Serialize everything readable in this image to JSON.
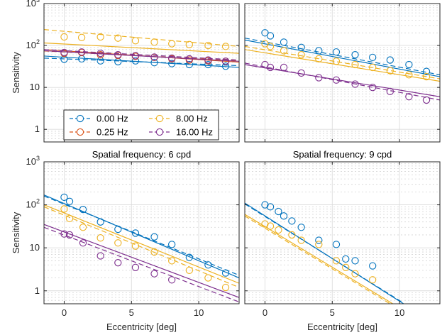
{
  "chart_data": [
    {
      "type": "scatter",
      "title": "",
      "xlabel": "",
      "ylabel": "Sensitivity",
      "xlim": [
        -1.5,
        13
      ],
      "ylim": [
        0.5,
        1000
      ],
      "y_scale": "log",
      "x_ticks": [
        0,
        5,
        10
      ],
      "y_ticks": [
        1,
        10,
        100,
        1000
      ],
      "y_tick_labels": [
        "1",
        "10",
        "10²",
        "10³"
      ],
      "grid": true,
      "legend": {
        "placement": "bottom-left",
        "entries": [
          "0.00 Hz",
          "0.25 Hz",
          "8.00 Hz",
          "16.00 Hz"
        ]
      },
      "series": [
        {
          "name": "0.00 Hz",
          "color": "#0072BD",
          "x": [
            0,
            1.3,
            2.7,
            4.0,
            5.3,
            6.7,
            8.0,
            9.3,
            10.7,
            12.0
          ],
          "y": [
            47,
            48,
            43,
            41,
            43,
            39,
            37,
            35,
            35,
            32
          ],
          "fit": [
            [
              -1.5,
              56
            ],
            [
              13,
              30
            ]
          ],
          "fit_dashed": [
            [
              -1.5,
              50
            ],
            [
              13,
              33
            ]
          ]
        },
        {
          "name": "0.25 Hz",
          "color": "#D95319",
          "x": [
            0,
            1.3,
            2.7,
            4.0,
            5.3,
            6.7,
            8.0,
            9.3,
            10.7,
            12.0
          ],
          "y": [
            65,
            68,
            60,
            58,
            55,
            52,
            48,
            45,
            43,
            42
          ],
          "fit": [
            [
              -1.5,
              80
            ],
            [
              13,
              40
            ]
          ],
          "fit_dashed": [
            [
              -1.5,
              74
            ],
            [
              13,
              43
            ]
          ]
        },
        {
          "name": "8.00 Hz",
          "color": "#EDB120",
          "x": [
            0,
            1.3,
            2.7,
            4.0,
            5.3,
            6.7,
            8.0,
            9.3,
            10.7,
            12.0
          ],
          "y": [
            160,
            155,
            160,
            150,
            130,
            120,
            110,
            105,
            100,
            95
          ],
          "fit": [
            [
              -1.5,
              115
            ],
            [
              13,
              65
            ]
          ],
          "fit_dashed": [
            [
              -1.5,
              240
            ],
            [
              13,
              95
            ]
          ]
        },
        {
          "name": "16.00 Hz",
          "color": "#7E2F8E",
          "x": [
            0,
            1.3,
            2.7,
            4.0,
            5.3,
            6.7,
            8.0,
            9.3,
            10.7,
            12.0
          ],
          "y": [
            68,
            70,
            65,
            60,
            57,
            53,
            50,
            48,
            45,
            42
          ],
          "fit": [
            [
              -1.5,
              75
            ],
            [
              13,
              42
            ]
          ],
          "fit_dashed": [
            [
              -1.5,
              80
            ],
            [
              13,
              45
            ]
          ]
        }
      ]
    },
    {
      "type": "scatter",
      "title": "",
      "xlabel": "",
      "ylabel": "",
      "xlim": [
        -1.5,
        13
      ],
      "ylim": [
        0.5,
        1000
      ],
      "y_scale": "log",
      "x_ticks": [
        0,
        5,
        10
      ],
      "y_ticks": [
        1,
        10,
        100,
        1000
      ],
      "grid": true,
      "series": [
        {
          "name": "0.00 Hz",
          "color": "#0072BD",
          "x": [
            0,
            0.4,
            1.4,
            2.7,
            4.0,
            5.3,
            6.7,
            8.0,
            9.3,
            10.7,
            12.0
          ],
          "y": [
            200,
            170,
            120,
            90,
            75,
            70,
            60,
            52,
            45,
            35,
            24
          ],
          "fit": [
            [
              -1.5,
              135
            ],
            [
              13,
              18
            ]
          ],
          "fit_dashed": [
            [
              -1.5,
              150
            ],
            [
              13,
              20
            ]
          ]
        },
        {
          "name": "8.00 Hz",
          "color": "#EDB120",
          "x": [
            0,
            0.4,
            1.4,
            2.7,
            4.0,
            5.3,
            6.7,
            8.0,
            9.3,
            10.7,
            12.0
          ],
          "y": [
            110,
            95,
            75,
            60,
            48,
            42,
            35,
            30,
            25,
            20,
            18
          ],
          "fit": [
            [
              -1.5,
              80
            ],
            [
              13,
              14
            ]
          ],
          "fit_dashed": [
            [
              -1.5,
              95
            ],
            [
              13,
              16
            ]
          ]
        },
        {
          "name": "16.00 Hz",
          "color": "#7E2F8E",
          "x": [
            0,
            0.4,
            1.4,
            2.7,
            4.0,
            5.3,
            6.7,
            8.0,
            9.3,
            10.7,
            12.0
          ],
          "y": [
            35,
            30,
            30,
            22,
            17,
            15,
            12,
            10,
            8,
            6,
            5
          ],
          "fit": [
            [
              -1.5,
              35
            ],
            [
              13,
              6
            ]
          ],
          "fit_dashed": [
            [
              -1.5,
              38
            ],
            [
              13,
              5
            ]
          ]
        }
      ]
    },
    {
      "type": "scatter",
      "title": "Spatial frequency: 6 cpd",
      "xlabel": "Eccentricity [deg]",
      "ylabel": "Sensitivity",
      "xlim": [
        -1.5,
        13
      ],
      "ylim": [
        0.5,
        1000
      ],
      "y_scale": "log",
      "x_ticks": [
        0,
        5,
        10
      ],
      "y_ticks": [
        1,
        10,
        100,
        1000
      ],
      "y_tick_labels": [
        "1",
        "10",
        "10²",
        "10³"
      ],
      "grid": true,
      "series": [
        {
          "name": "0.00 Hz",
          "color": "#0072BD",
          "x": [
            0,
            0.4,
            1.4,
            2.7,
            4.0,
            5.3,
            6.7,
            8.0,
            9.3,
            10.7,
            12.0
          ],
          "y": [
            150,
            120,
            78,
            40,
            27,
            22,
            18,
            12,
            6,
            4,
            2.6
          ],
          "fit": [
            [
              -1.5,
              170
            ],
            [
              13,
              2.0
            ]
          ],
          "fit_dashed": [
            [
              -1.5,
              160
            ],
            [
              13,
              2.3
            ]
          ]
        },
        {
          "name": "8.00 Hz",
          "color": "#EDB120",
          "x": [
            0,
            0.4,
            1.4,
            2.7,
            4.0,
            5.3,
            6.7,
            8.0,
            9.3,
            10.7,
            12.0
          ],
          "y": [
            80,
            48,
            30,
            17,
            13,
            11,
            8,
            5,
            3,
            2,
            1.2
          ],
          "fit": [
            [
              -1.5,
              100
            ],
            [
              13,
              1.5
            ]
          ],
          "fit_dashed": [
            [
              -1.5,
              90
            ],
            [
              13,
              1.2
            ]
          ]
        },
        {
          "name": "16.00 Hz",
          "color": "#7E2F8E",
          "x": [
            0,
            0.4,
            1.4,
            2.7,
            4.0,
            5.3,
            6.7,
            8.0
          ],
          "y": [
            21,
            20,
            13,
            6.5,
            4.5,
            3.5,
            2.5,
            1.8
          ],
          "fit": [
            [
              -1.5,
              35
            ],
            [
              13,
              0.7
            ]
          ],
          "fit_dashed": [
            [
              -1.5,
              30
            ],
            [
              13,
              0.55
            ]
          ]
        }
      ]
    },
    {
      "type": "scatter",
      "title": "Spatial frequency: 9 cpd",
      "xlabel": "Eccentricity [deg]",
      "ylabel": "",
      "xlim": [
        -1.5,
        13
      ],
      "ylim": [
        0.5,
        1000
      ],
      "y_scale": "log",
      "x_ticks": [
        0,
        5,
        10
      ],
      "y_ticks": [
        1,
        10,
        100,
        1000
      ],
      "grid": true,
      "series": [
        {
          "name": "0.00 Hz",
          "color": "#0072BD",
          "x": [
            0,
            0.4,
            1.0,
            1.4,
            2.0,
            2.7,
            4.0,
            5.3,
            6.0,
            6.7,
            8.0
          ],
          "y": [
            100,
            90,
            70,
            55,
            42,
            30,
            15,
            12,
            5.5,
            5,
            3.8
          ],
          "fit": [
            [
              -1.5,
              110
            ],
            [
              10.3,
              0.5
            ]
          ],
          "fit_dashed": [
            [
              -1.5,
              105
            ],
            [
              10.3,
              0.52
            ]
          ]
        },
        {
          "name": "8.00 Hz",
          "color": "#EDB120",
          "x": [
            0,
            0.4,
            1.0,
            2.0,
            2.7,
            4.0,
            5.3,
            6.0,
            6.7,
            8.0
          ],
          "y": [
            36,
            32,
            26,
            20,
            15,
            12,
            5,
            3.5,
            2.5,
            1.8
          ],
          "fit": [
            [
              -1.5,
              60
            ],
            [
              9.5,
              0.5
            ]
          ],
          "fit_dashed": [
            [
              -1.5,
              55
            ],
            [
              9.3,
              0.5
            ]
          ]
        }
      ]
    }
  ]
}
